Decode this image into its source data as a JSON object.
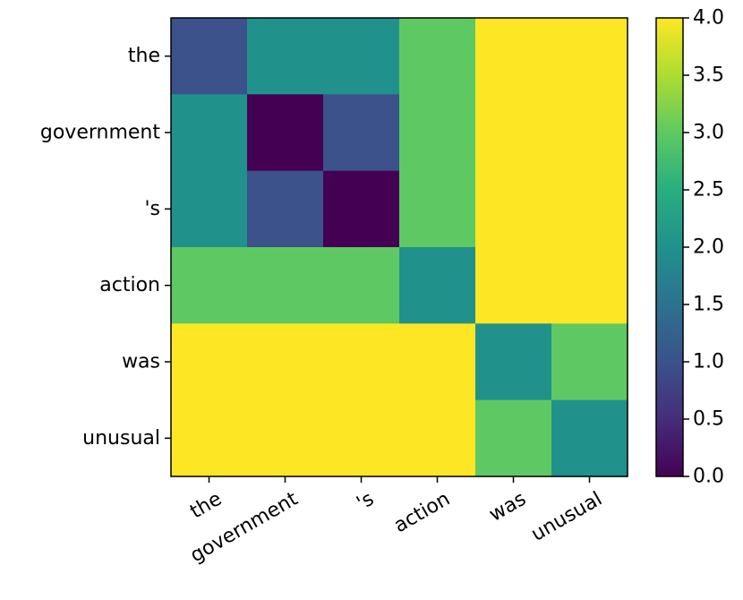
{
  "chart_data": {
    "type": "heatmap",
    "x_categories": [
      "the",
      "government",
      "'s",
      "action",
      "was",
      "unusual"
    ],
    "y_categories": [
      "the",
      "government",
      "'s",
      "action",
      "was",
      "unusual"
    ],
    "values": [
      [
        1,
        2,
        2,
        3,
        4,
        4
      ],
      [
        2,
        0,
        1,
        3,
        4,
        4
      ],
      [
        2,
        1,
        0,
        3,
        4,
        4
      ],
      [
        3,
        3,
        3,
        2,
        4,
        4
      ],
      [
        4,
        4,
        4,
        4,
        2,
        3
      ],
      [
        4,
        4,
        4,
        4,
        3,
        2
      ]
    ],
    "colormap": "viridis",
    "colorbar": {
      "range": [
        0.0,
        4.0
      ],
      "ticks": [
        "0.0",
        "0.5",
        "1.0",
        "1.5",
        "2.0",
        "2.5",
        "3.0",
        "3.5",
        "4.0"
      ]
    },
    "title": "",
    "xlabel": "",
    "ylabel": "",
    "grid": false
  }
}
